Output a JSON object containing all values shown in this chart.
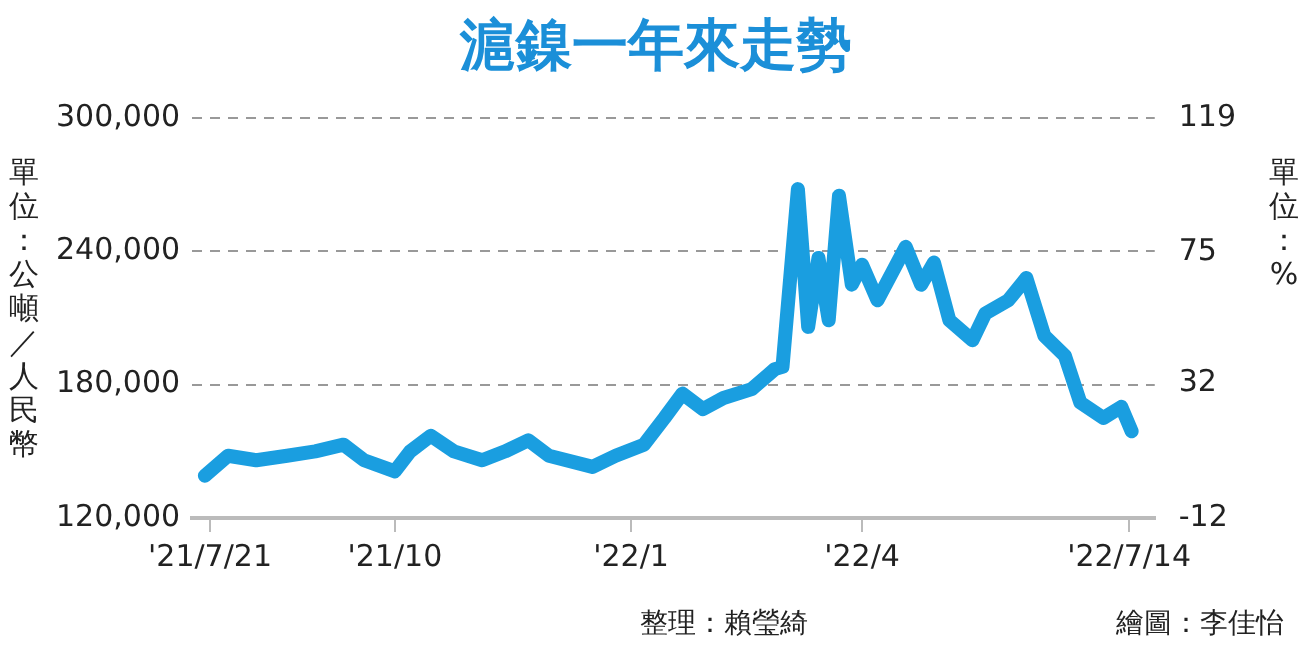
{
  "chart_data": {
    "type": "line",
    "title": "滬鎳一年來走勢",
    "ylabel": "單位：公噸／人民幣",
    "y2label": "單位：%",
    "x": [
      "2021-07-19",
      "2021-07-28",
      "2021-08-08",
      "2021-08-20",
      "2021-08-31",
      "2021-09-11",
      "2021-09-19",
      "2021-10-01",
      "2021-10-07",
      "2021-10-15",
      "2021-10-24",
      "2021-11-04",
      "2021-11-13",
      "2021-11-22",
      "2021-11-30",
      "2021-12-17",
      "2021-12-26",
      "2022-01-06",
      "2022-01-14",
      "2022-01-21",
      "2022-01-29",
      "2022-02-06",
      "2022-02-17",
      "2022-02-26",
      "2022-03-01",
      "2022-03-07",
      "2022-03-11",
      "2022-03-15",
      "2022-03-19",
      "2022-03-23",
      "2022-03-28",
      "2022-04-01",
      "2022-04-07",
      "2022-04-18",
      "2022-04-24",
      "2022-04-29",
      "2022-05-05",
      "2022-05-14",
      "2022-05-19",
      "2022-05-28",
      "2022-06-04",
      "2022-06-11",
      "2022-06-19",
      "2022-06-25",
      "2022-07-04",
      "2022-07-11",
      "2022-07-15"
    ],
    "series": [
      {
        "color": "#1a9ee0",
        "values": [
          139000,
          148000,
          146000,
          148000,
          150000,
          153000,
          146000,
          141000,
          150000,
          157000,
          150000,
          146000,
          150000,
          155000,
          148000,
          143000,
          148000,
          153000,
          165000,
          176000,
          169000,
          174000,
          178000,
          187000,
          188000,
          268000,
          206000,
          237000,
          209000,
          265000,
          225000,
          234000,
          218000,
          242000,
          225000,
          235000,
          209000,
          200000,
          212000,
          218000,
          228000,
          202000,
          193000,
          172000,
          165000,
          170000,
          159000
        ]
      }
    ],
    "xlim": [
      "2021-07-14",
      "2022-07-24"
    ],
    "xticks": [
      {
        "value": "2021-07-21",
        "label": "'21/7/21"
      },
      {
        "value": "2021-10-01",
        "label": "'21/10"
      },
      {
        "value": "2022-01-01",
        "label": "'22/1"
      },
      {
        "value": "2022-04-01",
        "label": "'22/4"
      },
      {
        "value": "2022-07-14",
        "label": "'22/7/14"
      }
    ],
    "ylim": [
      120000,
      300000
    ],
    "yticks": [
      {
        "value": 120000,
        "label": "120,000"
      },
      {
        "value": 180000,
        "label": "180,000"
      },
      {
        "value": 240000,
        "label": "240,000"
      },
      {
        "value": 300000,
        "label": "300,000"
      }
    ],
    "y2lim": [
      -12,
      119
    ],
    "y2ticks": [
      -12,
      32,
      75,
      119
    ],
    "grid": "y",
    "annotations": [
      "整理：賴瑩綺",
      "繪圖：李佳怡"
    ]
  }
}
